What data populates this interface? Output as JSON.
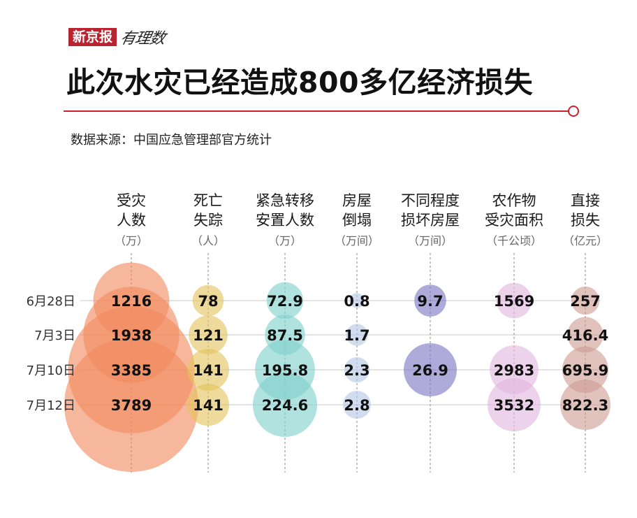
{
  "brand": {
    "name": "新京报",
    "section": "有理数"
  },
  "title": "此次水灾已经造成800多亿经济损失",
  "source": "数据来源：中国应急管理部官方统计",
  "colors": {
    "accent": "#c8212d",
    "series": [
      "#f08a60",
      "#e3c45e",
      "#7fd0cb",
      "#b4c8e4",
      "#7c78c4",
      "#e0b8de",
      "#cf9c94"
    ]
  },
  "chart_data": {
    "type": "bubble",
    "dates": [
      "6月28日",
      "7月3日",
      "7月10日",
      "7月12日"
    ],
    "series": [
      {
        "name": [
          "受灾",
          "人数"
        ],
        "unit": "（万）",
        "values": [
          1216,
          1938,
          3385,
          3789
        ]
      },
      {
        "name": [
          "死亡",
          "失踪"
        ],
        "unit": "（人）",
        "values": [
          78,
          121,
          141,
          141
        ]
      },
      {
        "name": [
          "紧急转移",
          "安置人数"
        ],
        "unit": "（万）",
        "values": [
          72.9,
          87.5,
          195.8,
          224.6
        ]
      },
      {
        "name": [
          "房屋",
          "倒塌"
        ],
        "unit": "（万间）",
        "values": [
          0.8,
          1.7,
          2.3,
          2.8
        ]
      },
      {
        "name": [
          "不同程度",
          "损坏房屋"
        ],
        "unit": "（万间）",
        "values": [
          9.7,
          null,
          26.9,
          null
        ]
      },
      {
        "name": [
          "农作物",
          "受灾面积"
        ],
        "unit": "（千公顷）",
        "values": [
          1569,
          null,
          2983,
          3532
        ]
      },
      {
        "name": [
          "直接",
          "损失"
        ],
        "unit": "（亿元）",
        "values": [
          257,
          416.4,
          695.9,
          822.3
        ]
      }
    ]
  }
}
